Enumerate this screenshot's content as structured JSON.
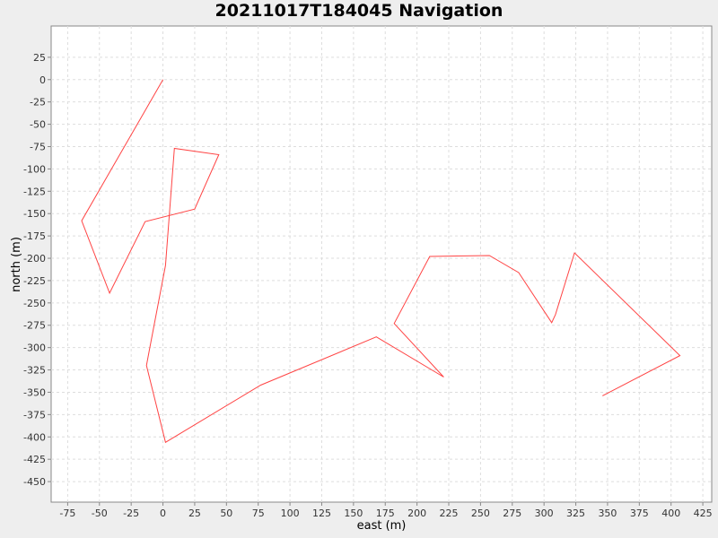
{
  "chart_data": {
    "type": "line",
    "title": "20211017T184045 Navigation",
    "xlabel": "east (m)",
    "ylabel": "north (m)",
    "xlim": [
      -88,
      432
    ],
    "ylim": [
      -473,
      60
    ],
    "x_ticks": [
      -75,
      -50,
      -25,
      0,
      25,
      50,
      75,
      100,
      125,
      150,
      175,
      200,
      225,
      250,
      275,
      300,
      325,
      350,
      375,
      400,
      425
    ],
    "y_ticks": [
      25,
      0,
      -25,
      -50,
      -75,
      -100,
      -125,
      -150,
      -175,
      -200,
      -225,
      -250,
      -275,
      -300,
      -325,
      -350,
      -375,
      -400,
      -425,
      -450
    ],
    "grid": true,
    "line_color": "#ff4444",
    "series": [
      {
        "x": [
          0,
          -64,
          -42,
          -14,
          25,
          44,
          9,
          2,
          -11,
          -13,
          2,
          77,
          168,
          221,
          182,
          210,
          257,
          280,
          306,
          309,
          324,
          407,
          346
        ],
        "y": [
          0,
          -158,
          -239,
          -159,
          -145,
          -84,
          -77,
          -208,
          -305,
          -320,
          -406,
          -342,
          -288,
          -333,
          -273,
          -198,
          -197,
          -216,
          -272,
          -263,
          -194,
          -309,
          -354
        ]
      }
    ]
  }
}
